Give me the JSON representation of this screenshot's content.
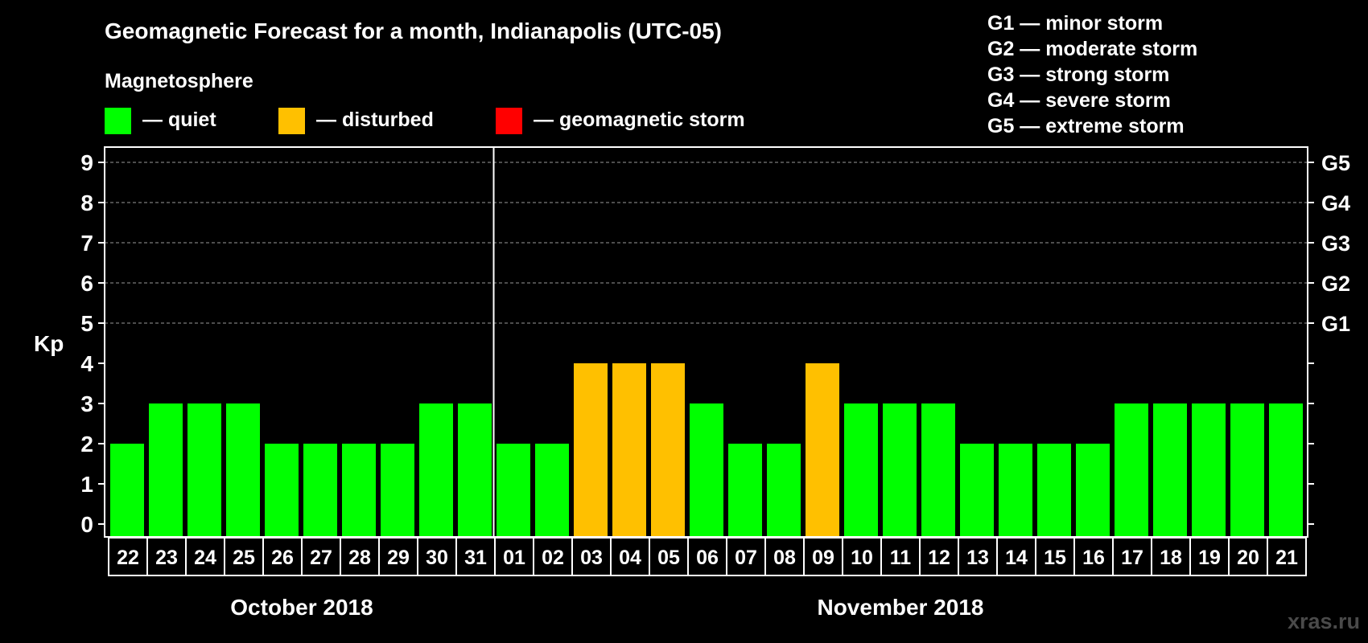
{
  "title": "Geomagnetic Forecast for a month, Indianapolis (UTC-05)",
  "legend": {
    "heading": "Magnetosphere",
    "items": [
      {
        "label": "— quiet",
        "color": "#00ff00"
      },
      {
        "label": "— disturbed",
        "color": "#ffc000"
      },
      {
        "label": "— geomagnetic storm",
        "color": "#ff0000"
      }
    ]
  },
  "storm_scale": [
    "G1 — minor storm",
    "G2 — moderate storm",
    "G3 — strong storm",
    "G4 — severe storm",
    "G5 — extreme storm"
  ],
  "watermark": "xras.ru",
  "chart_data": {
    "type": "bar",
    "title": "Geomagnetic Forecast for a month, Indianapolis (UTC-05)",
    "ylabel": "Kp",
    "xlabel": "",
    "ylim": [
      0,
      9
    ],
    "yticks": [
      "0",
      "1",
      "2",
      "3",
      "4",
      "5",
      "6",
      "7",
      "8",
      "9"
    ],
    "right_axis_labels": [
      {
        "kp": 5,
        "label": "G1"
      },
      {
        "kp": 6,
        "label": "G2"
      },
      {
        "kp": 7,
        "label": "G3"
      },
      {
        "kp": 8,
        "label": "G4"
      },
      {
        "kp": 9,
        "label": "G5"
      }
    ],
    "grid_dashed_from": 5,
    "categories": [
      "22",
      "23",
      "24",
      "25",
      "26",
      "27",
      "28",
      "29",
      "30",
      "31",
      "01",
      "02",
      "03",
      "04",
      "05",
      "06",
      "07",
      "08",
      "09",
      "10",
      "11",
      "12",
      "13",
      "14",
      "15",
      "16",
      "17",
      "18",
      "19",
      "20",
      "21"
    ],
    "values": [
      2,
      3,
      3,
      3,
      2,
      2,
      2,
      2,
      3,
      3,
      2,
      2,
      4,
      4,
      4,
      3,
      2,
      2,
      4,
      3,
      3,
      3,
      2,
      2,
      2,
      2,
      3,
      3,
      3,
      3,
      3
    ],
    "thresholds": {
      "quiet_max": 3,
      "disturbed_max": 4
    },
    "months": [
      {
        "label": "October 2018",
        "start_index": 0,
        "end_index": 9
      },
      {
        "label": "November 2018",
        "start_index": 10,
        "end_index": 30
      }
    ]
  }
}
